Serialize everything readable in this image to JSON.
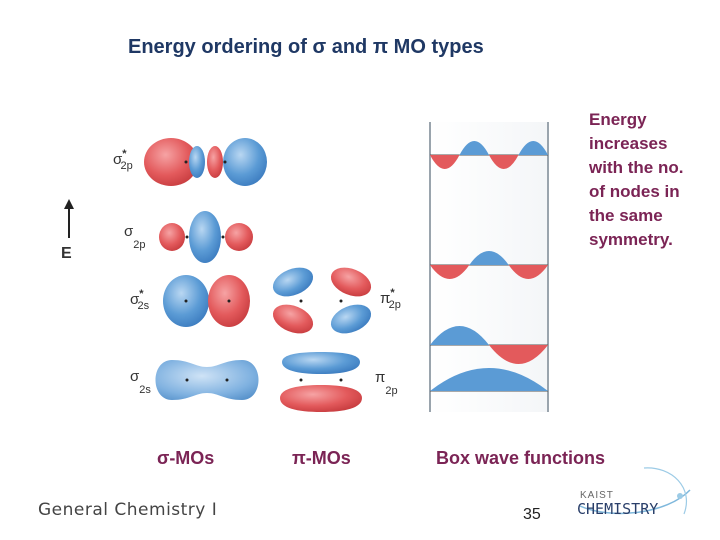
{
  "slide": {
    "title": "Energy ordering of σ and π MO types",
    "energy_note": "Energy increases with the no. of nodes in the same symmetry.",
    "energy_axis_label": "E",
    "columns": {
      "sigma": "σ-MOs",
      "pi": "π-MOs",
      "box": "Box wave functions"
    },
    "sigma_levels": [
      {
        "base": "σ",
        "star": "*",
        "sub": "2p"
      },
      {
        "base": "σ",
        "star": "",
        "sub": "2p"
      },
      {
        "base": "σ",
        "star": "*",
        "sub": "2s"
      },
      {
        "base": "σ",
        "star": "",
        "sub": "2s"
      }
    ],
    "pi_levels": [
      {
        "base": "π",
        "star": "*",
        "sub": "2p"
      },
      {
        "base": "π",
        "star": "",
        "sub": "2p"
      }
    ],
    "footer": {
      "course": "General Chemistry I",
      "page_number": "35",
      "logo_top": "KAIST",
      "logo_main": "CHEMISTRY"
    },
    "colors": {
      "title": "#1f3864",
      "accent": "#7b2455",
      "lobe_red": "#e35a5c",
      "lobe_blue": "#5b9bd5"
    }
  }
}
